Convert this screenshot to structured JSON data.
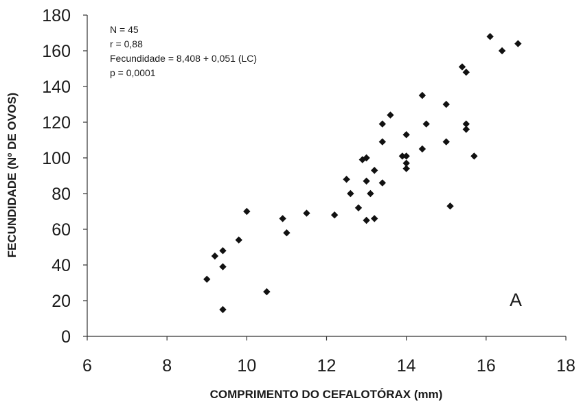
{
  "chart_data": {
    "type": "scatter",
    "xlabel": "COMPRIMENTO DO CEFALOTÓRAX (mm)",
    "ylabel": "FECUNDIDADE (Nº DE OVOS)",
    "xlim": [
      6,
      18
    ],
    "ylim": [
      0,
      180
    ],
    "x_ticks": [
      "6",
      "8",
      "10",
      "12",
      "14",
      "16",
      "18"
    ],
    "y_ticks": [
      "0",
      "20",
      "40",
      "60",
      "80",
      "100",
      "120",
      "140",
      "160",
      "180"
    ],
    "annotations": [
      "N = 45",
      "r = 0,88",
      "Fecundidade = 8,408 + 0,051 (LC)",
      "p = 0,0001"
    ],
    "panel_label": "A",
    "grid": false,
    "marker": "diamond",
    "marker_color": "#111111",
    "points": [
      [
        9.0,
        32
      ],
      [
        9.2,
        45
      ],
      [
        9.4,
        48
      ],
      [
        9.4,
        39
      ],
      [
        9.4,
        15
      ],
      [
        9.8,
        54
      ],
      [
        10.0,
        70
      ],
      [
        10.5,
        25
      ],
      [
        10.9,
        66
      ],
      [
        11.0,
        58
      ],
      [
        11.5,
        69
      ],
      [
        12.2,
        68
      ],
      [
        12.5,
        88
      ],
      [
        12.6,
        80
      ],
      [
        12.8,
        72
      ],
      [
        12.9,
        99
      ],
      [
        13.0,
        100
      ],
      [
        13.0,
        87
      ],
      [
        13.0,
        65
      ],
      [
        13.1,
        80
      ],
      [
        13.2,
        93
      ],
      [
        13.2,
        66
      ],
      [
        13.4,
        119
      ],
      [
        13.4,
        109
      ],
      [
        13.4,
        86
      ],
      [
        13.6,
        124
      ],
      [
        13.9,
        101
      ],
      [
        14.0,
        113
      ],
      [
        14.0,
        101
      ],
      [
        14.0,
        97
      ],
      [
        14.0,
        94
      ],
      [
        14.4,
        135
      ],
      [
        14.4,
        105
      ],
      [
        14.5,
        119
      ],
      [
        15.0,
        130
      ],
      [
        15.0,
        109
      ],
      [
        15.1,
        73
      ],
      [
        15.4,
        151
      ],
      [
        15.5,
        148
      ],
      [
        15.5,
        119
      ],
      [
        15.5,
        116
      ],
      [
        15.7,
        101
      ],
      [
        16.1,
        168
      ],
      [
        16.4,
        160
      ],
      [
        16.8,
        164
      ]
    ]
  }
}
